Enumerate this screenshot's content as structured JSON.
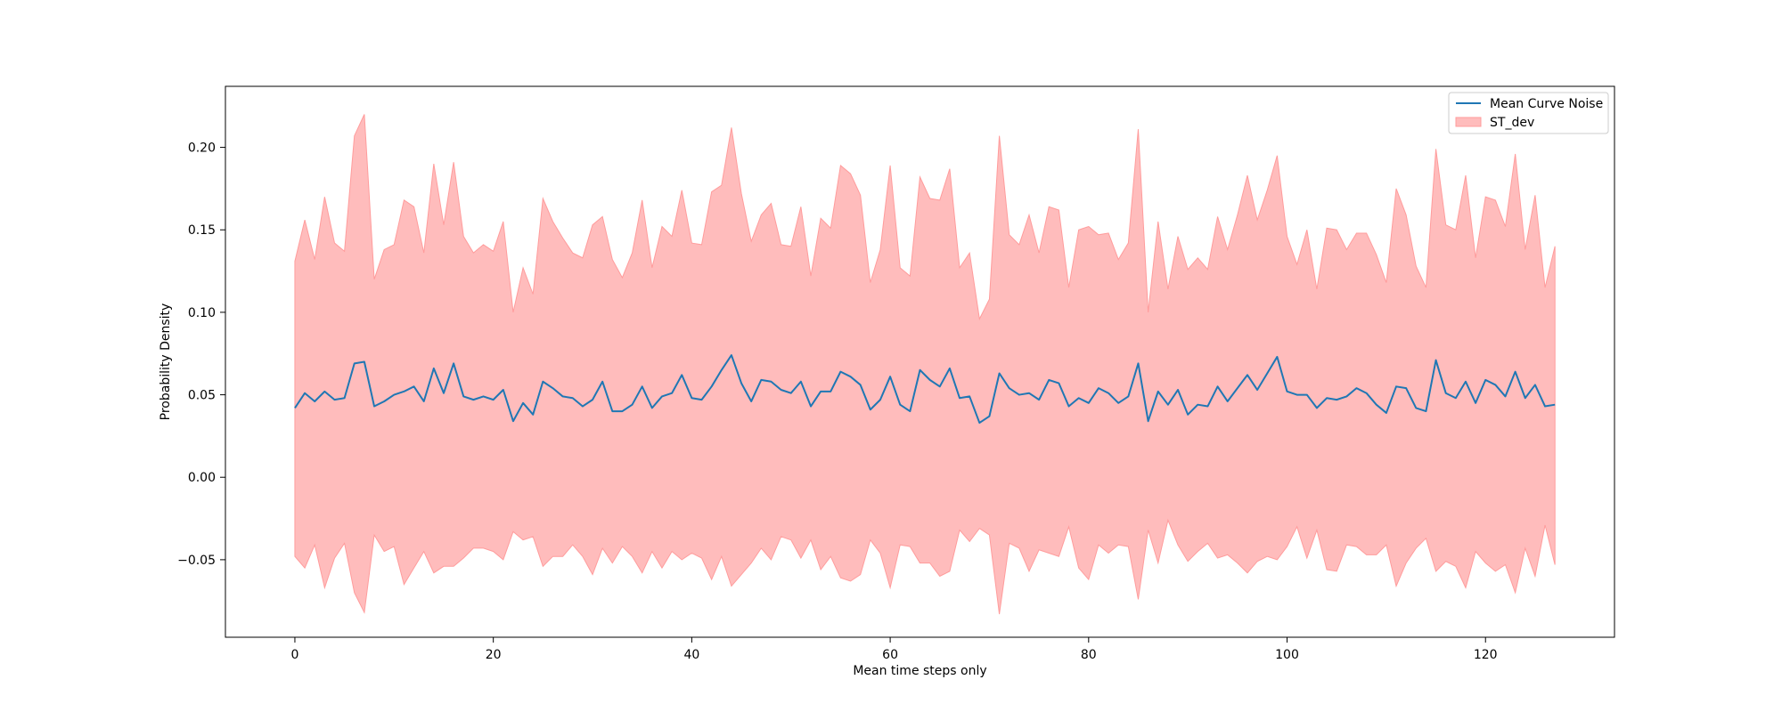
{
  "chart_data": {
    "type": "area",
    "xlabel": "Mean time steps only",
    "ylabel": "Probability Density",
    "xlim": [
      -7,
      133
    ],
    "ylim": [
      -0.097,
      0.237
    ],
    "xticks": [
      0,
      20,
      40,
      60,
      80,
      100,
      120
    ],
    "xtick_labels": [
      "0",
      "20",
      "40",
      "60",
      "80",
      "100",
      "120"
    ],
    "yticks": [
      -0.05,
      0.0,
      0.05,
      0.1,
      0.15,
      0.2
    ],
    "ytick_labels": [
      "−0.05",
      "0.00",
      "0.05",
      "0.10",
      "0.15",
      "0.20"
    ],
    "grid": false,
    "legend": {
      "placement": "top-right",
      "entries": [
        {
          "label": "Mean Curve Noise",
          "kind": "line"
        },
        {
          "label": "ST_dev",
          "kind": "patch"
        }
      ]
    },
    "colors": {
      "mean": "#1f77b4",
      "band_fill": "#ffbcbc",
      "band_edge": "#ff9c9c"
    },
    "x": [
      0,
      1,
      2,
      3,
      4,
      5,
      6,
      7,
      8,
      9,
      10,
      11,
      12,
      13,
      14,
      15,
      16,
      17,
      18,
      19,
      20,
      21,
      22,
      23,
      24,
      25,
      26,
      27,
      28,
      29,
      30,
      31,
      32,
      33,
      34,
      35,
      36,
      37,
      38,
      39,
      40,
      41,
      42,
      43,
      44,
      45,
      46,
      47,
      48,
      49,
      50,
      51,
      52,
      53,
      54,
      55,
      56,
      57,
      58,
      59,
      60,
      61,
      62,
      63,
      64,
      65,
      66,
      67,
      68,
      69,
      70,
      71,
      72,
      73,
      74,
      75,
      76,
      77,
      78,
      79,
      80,
      81,
      82,
      83,
      84,
      85,
      86,
      87,
      88,
      89,
      90,
      91,
      92,
      93,
      94,
      95,
      96,
      97,
      98,
      99,
      100,
      101,
      102,
      103,
      104,
      105,
      106,
      107,
      108,
      109,
      110,
      111,
      112,
      113,
      114,
      115,
      116,
      117,
      118,
      119,
      120,
      121,
      122,
      123,
      124,
      125,
      126,
      127
    ],
    "series": [
      {
        "name": "Mean Curve Noise",
        "values": [
          0.042,
          0.051,
          0.046,
          0.052,
          0.047,
          0.048,
          0.069,
          0.07,
          0.043,
          0.046,
          0.05,
          0.052,
          0.055,
          0.046,
          0.066,
          0.051,
          0.069,
          0.049,
          0.047,
          0.049,
          0.047,
          0.053,
          0.034,
          0.045,
          0.038,
          0.058,
          0.054,
          0.049,
          0.048,
          0.043,
          0.047,
          0.058,
          0.04,
          0.04,
          0.044,
          0.055,
          0.042,
          0.049,
          0.051,
          0.062,
          0.048,
          0.047,
          0.055,
          0.065,
          0.074,
          0.057,
          0.046,
          0.059,
          0.058,
          0.053,
          0.051,
          0.058,
          0.043,
          0.052,
          0.052,
          0.064,
          0.061,
          0.056,
          0.041,
          0.047,
          0.061,
          0.044,
          0.04,
          0.065,
          0.059,
          0.055,
          0.066,
          0.048,
          0.049,
          0.033,
          0.037,
          0.063,
          0.054,
          0.05,
          0.051,
          0.047,
          0.059,
          0.057,
          0.043,
          0.048,
          0.045,
          0.054,
          0.051,
          0.045,
          0.049,
          0.069,
          0.034,
          0.052,
          0.044,
          0.053,
          0.038,
          0.044,
          0.043,
          0.055,
          0.046,
          0.054,
          0.062,
          0.053,
          0.063,
          0.073,
          0.052,
          0.05,
          0.05,
          0.042,
          0.048,
          0.047,
          0.049,
          0.054,
          0.051,
          0.044,
          0.039,
          0.055,
          0.054,
          0.042,
          0.04,
          0.071,
          0.051,
          0.048,
          0.058,
          0.045,
          0.059,
          0.056,
          0.049,
          0.064,
          0.048,
          0.056,
          0.043,
          0.044
        ]
      },
      {
        "name": "ST_dev",
        "upper": [
          0.131,
          0.156,
          0.132,
          0.17,
          0.142,
          0.137,
          0.207,
          0.22,
          0.12,
          0.138,
          0.141,
          0.168,
          0.164,
          0.136,
          0.19,
          0.153,
          0.191,
          0.146,
          0.136,
          0.141,
          0.137,
          0.155,
          0.1,
          0.127,
          0.111,
          0.169,
          0.155,
          0.145,
          0.136,
          0.133,
          0.153,
          0.158,
          0.132,
          0.121,
          0.136,
          0.168,
          0.127,
          0.152,
          0.146,
          0.174,
          0.142,
          0.141,
          0.173,
          0.177,
          0.212,
          0.172,
          0.143,
          0.159,
          0.166,
          0.141,
          0.14,
          0.164,
          0.122,
          0.157,
          0.151,
          0.189,
          0.184,
          0.171,
          0.118,
          0.138,
          0.189,
          0.127,
          0.122,
          0.182,
          0.169,
          0.168,
          0.187,
          0.127,
          0.136,
          0.096,
          0.108,
          0.207,
          0.147,
          0.141,
          0.159,
          0.136,
          0.164,
          0.162,
          0.115,
          0.15,
          0.152,
          0.147,
          0.148,
          0.132,
          0.142,
          0.211,
          0.1,
          0.155,
          0.114,
          0.146,
          0.126,
          0.133,
          0.126,
          0.158,
          0.138,
          0.159,
          0.183,
          0.156,
          0.174,
          0.195,
          0.146,
          0.129,
          0.15,
          0.114,
          0.151,
          0.15,
          0.138,
          0.148,
          0.148,
          0.135,
          0.118,
          0.175,
          0.159,
          0.128,
          0.115,
          0.199,
          0.153,
          0.15,
          0.183,
          0.133,
          0.17,
          0.168,
          0.152,
          0.196,
          0.138,
          0.171,
          0.115,
          0.14
        ],
        "lower": [
          -0.048,
          -0.055,
          -0.041,
          -0.067,
          -0.049,
          -0.04,
          -0.07,
          -0.082,
          -0.035,
          -0.045,
          -0.042,
          -0.065,
          -0.055,
          -0.045,
          -0.058,
          -0.054,
          -0.054,
          -0.049,
          -0.043,
          -0.043,
          -0.045,
          -0.05,
          -0.033,
          -0.038,
          -0.036,
          -0.054,
          -0.048,
          -0.048,
          -0.041,
          -0.048,
          -0.059,
          -0.043,
          -0.052,
          -0.042,
          -0.048,
          -0.058,
          -0.045,
          -0.055,
          -0.045,
          -0.05,
          -0.046,
          -0.049,
          -0.062,
          -0.048,
          -0.066,
          -0.059,
          -0.052,
          -0.043,
          -0.05,
          -0.036,
          -0.038,
          -0.049,
          -0.038,
          -0.056,
          -0.048,
          -0.061,
          -0.063,
          -0.059,
          -0.038,
          -0.046,
          -0.067,
          -0.041,
          -0.042,
          -0.052,
          -0.052,
          -0.06,
          -0.057,
          -0.032,
          -0.039,
          -0.031,
          -0.035,
          -0.083,
          -0.04,
          -0.043,
          -0.057,
          -0.044,
          -0.046,
          -0.048,
          -0.03,
          -0.055,
          -0.062,
          -0.041,
          -0.046,
          -0.041,
          -0.042,
          -0.074,
          -0.032,
          -0.052,
          -0.026,
          -0.041,
          -0.051,
          -0.045,
          -0.04,
          -0.049,
          -0.047,
          -0.052,
          -0.058,
          -0.051,
          -0.048,
          -0.05,
          -0.042,
          -0.03,
          -0.049,
          -0.032,
          -0.056,
          -0.057,
          -0.041,
          -0.042,
          -0.047,
          -0.047,
          -0.041,
          -0.066,
          -0.052,
          -0.043,
          -0.037,
          -0.057,
          -0.051,
          -0.054,
          -0.067,
          -0.045,
          -0.052,
          -0.057,
          -0.053,
          -0.07,
          -0.043,
          -0.06,
          -0.029,
          -0.053
        ]
      }
    ]
  }
}
